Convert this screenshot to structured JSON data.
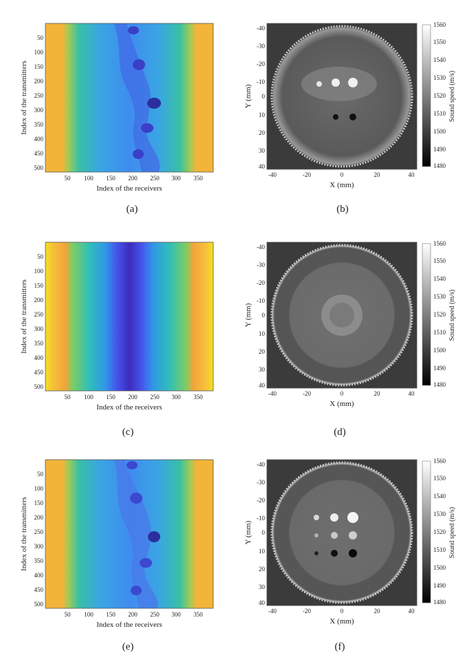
{
  "sinogram": {
    "xlabel": "Index of the receivers",
    "ylabel": "Index of the transmitters",
    "x_ticks": [
      "50",
      "100",
      "150",
      "200",
      "250",
      "300",
      "350"
    ],
    "y_ticks": [
      "50",
      "100",
      "150",
      "200",
      "250",
      "300",
      "350",
      "400",
      "450",
      "500"
    ],
    "xlim": [
      0,
      384
    ],
    "ylim": [
      0,
      512
    ],
    "colormap": [
      "#3e26a8",
      "#4a5ef0",
      "#2e9df0",
      "#22c3a0",
      "#9dd44a",
      "#f9b236",
      "#f9e01e"
    ]
  },
  "recon": {
    "xlabel": "X (mm)",
    "ylabel": "Y (mm)",
    "x_ticks": [
      "-40",
      "-20",
      "0",
      "20",
      "40"
    ],
    "y_ticks": [
      "-40",
      "-30",
      "-20",
      "-10",
      "0",
      "10",
      "20",
      "30",
      "40"
    ],
    "colorbar_label": "Sound speed (m/s)",
    "colorbar_ticks": [
      "1560",
      "1550",
      "1540",
      "1530",
      "1520",
      "1510",
      "1500",
      "1490",
      "1480"
    ],
    "range_mm": [
      -42,
      42
    ],
    "range_speed": [
      1480,
      1560
    ]
  },
  "panels": [
    {
      "id": "a",
      "caption": "(a)"
    },
    {
      "id": "b",
      "caption": "(b)"
    },
    {
      "id": "c",
      "caption": "(c)"
    },
    {
      "id": "d",
      "caption": "(d)"
    },
    {
      "id": "e",
      "caption": "(e)"
    },
    {
      "id": "f",
      "caption": "(f)"
    }
  ]
}
